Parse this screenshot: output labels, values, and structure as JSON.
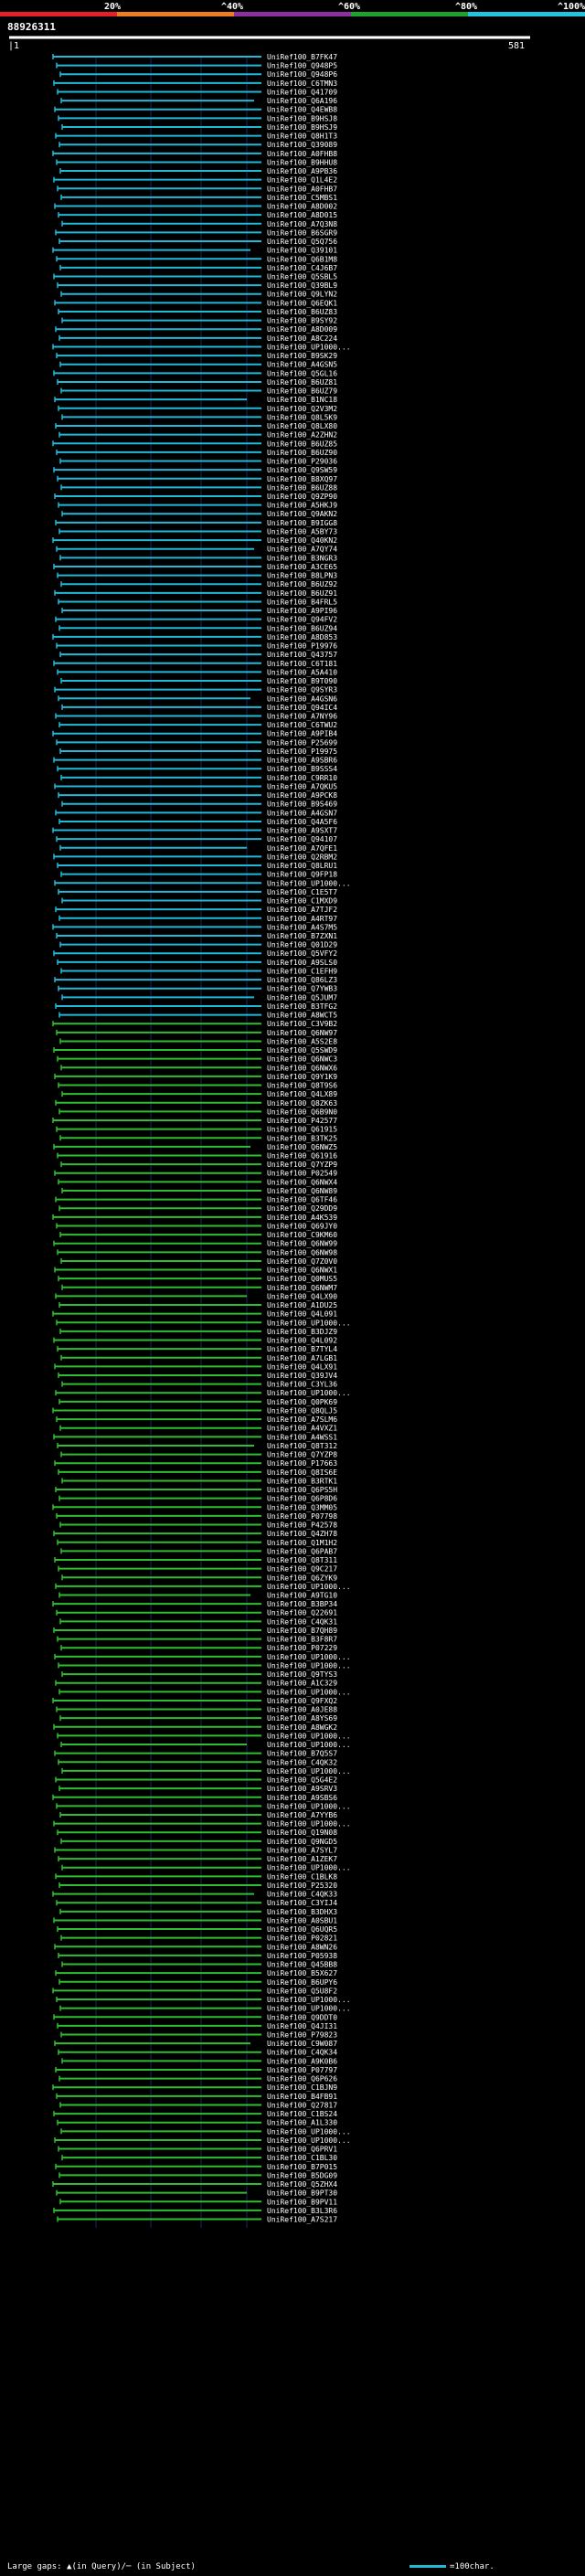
{
  "query": {
    "name": "88926311",
    "start_label": "1",
    "end_label": "581"
  },
  "scale_bar": {
    "labels": [
      "20%",
      "^40%",
      "^60%",
      "^80%",
      "^100%"
    ],
    "colors": [
      "#e4202a",
      "#ec7d22",
      "#8e2f9e",
      "#1fa12e",
      "#22c3dd"
    ]
  },
  "match_colors": {
    "cyan": "#22b8d8",
    "green": "#2fbe2f",
    "bg": "#000000"
  },
  "hits": [
    "UniRef100_B7FK47",
    "UniRef100_Q948P5",
    "UniRef100_Q948P6",
    "UniRef100_C6TMN3",
    "UniRef100_Q41709",
    "UniRef100_Q6A196",
    "UniRef100_Q4EWB8",
    "UniRef100_B9HSJ8",
    "UniRef100_B9HSJ9",
    "UniRef100_Q8H1T3",
    "UniRef100_Q39089",
    "UniRef100_A0FHB8",
    "UniRef100_B9HHU8",
    "UniRef100_A9PB36",
    "UniRef100_Q1L4E2",
    "UniRef100_A0FHB7",
    "UniRef100_C5MBS1",
    "UniRef100_A8D002",
    "UniRef100_A8D015",
    "UniRef100_A7Q3N8",
    "UniRef100_B6SGR9",
    "UniRef100_Q5Q756",
    "UniRef100_Q39101",
    "UniRef100_Q6B1M8",
    "UniRef100_C4J6B7",
    "UniRef100_Q5SBL5",
    "UniRef100_Q39BL9",
    "UniRef100_Q9LYN2",
    "UniRef100_Q6EQK1",
    "UniRef100_B6UZ83",
    "UniRef100_B9SY92",
    "UniRef100_A8D009",
    "UniRef100_A8C224",
    "UniRef100_UP1000...",
    "UniRef100_B9SK29",
    "UniRef100_A4GSN5",
    "UniRef100_Q5GL16",
    "UniRef100_B6UZ81",
    "UniRef100_B6UZ79",
    "UniRef100_B1NC18",
    "UniRef100_Q2V3M2",
    "UniRef100_Q8L5K9",
    "UniRef100_Q8LX80",
    "UniRef100_A2ZHN2",
    "UniRef100_B6UZ85",
    "UniRef100_B6UZ90",
    "UniRef100_P29036",
    "UniRef100_Q9SW59",
    "UniRef100_B8XQ97",
    "UniRef100_B6UZ88",
    "UniRef100_Q9ZP90",
    "UniRef100_A5HKJ9",
    "UniRef100_Q9AKN2",
    "UniRef100_B9IGG8",
    "UniRef100_A5BY73",
    "UniRef100_Q40KN2",
    "UniRef100_A7QY74",
    "UniRef100_B3NGR3",
    "UniRef100_A3CE65",
    "UniRef100_B8LPN3",
    "UniRef100_B6UZ92",
    "UniRef100_B6UZ91",
    "UniRef100_B4FRL5",
    "UniRef100_A9PI96",
    "UniRef100_Q94FV2",
    "UniRef100_B6UZ94",
    "UniRef100_A8D853",
    "UniRef100_P19976",
    "UniRef100_Q43757",
    "UniRef100_C6T181",
    "UniRef100_A5A410",
    "UniRef100_B9T090",
    "UniRef100_Q9SYR3",
    "UniRef100_A4GSN6",
    "UniRef100_Q94IC4",
    "UniRef100_A7NY96",
    "UniRef100_C6TWU2",
    "UniRef100_A9PIB4",
    "UniRef100_P25699",
    "UniRef100_P19975",
    "UniRef100_A9SBR6",
    "UniRef100_B9SSS4",
    "UniRef100_C9RR10",
    "UniRef100_A7QKU5",
    "UniRef100_A9PCK8",
    "UniRef100_B9S469",
    "UniRef100_A4GSN7",
    "UniRef100_Q4A5F6",
    "UniRef100_A9SXT7",
    "UniRef100_Q94107",
    "UniRef100_A7QFE1",
    "UniRef100_Q2RBM2",
    "UniRef100_Q8LRU1",
    "UniRef100_Q9FP18",
    "UniRef100_UP1000...",
    "UniRef100_C1E5T7",
    "UniRef100_C1MXD9",
    "UniRef100_A7TJF2",
    "UniRef100_A4RT97",
    "UniRef100_A4S7M5",
    "UniRef100_B7ZXN1",
    "UniRef100_Q01D29",
    "UniRef100_Q5VFY2",
    "UniRef100_A9SLS0",
    "UniRef100_C1EFH9",
    "UniRef100_Q86LZ3",
    "UniRef100_Q7YWB3",
    "UniRef100_Q5JUM7",
    "UniRef100_B3TFG2",
    "UniRef100_A8WCT5",
    "UniRef100_C3V9B2",
    "UniRef100_Q6NW97",
    "UniRef100_A5S2E8",
    "UniRef100_Q5SWD9",
    "UniRef100_Q6NWC3",
    "UniRef100_Q6NWX6",
    "UniRef100_Q9Y1K9",
    "UniRef100_Q8T9S6",
    "UniRef100_Q4LX89",
    "UniRef100_Q8ZK63",
    "UniRef100_Q6B9N0",
    "UniRef100_P42577",
    "UniRef100_Q61915",
    "UniRef100_B3TK25",
    "UniRef100_Q6NWZ5",
    "UniRef100_Q61916",
    "UniRef100_Q7YZP9",
    "UniRef100_P02549",
    "UniRef100_Q6NWX4",
    "UniRef100_Q6NW89",
    "UniRef100_Q6TF46",
    "UniRef100_Q29DD9",
    "UniRef100_A4K539",
    "UniRef100_Q69JY0",
    "UniRef100_C9KM60",
    "UniRef100_Q6NW99",
    "UniRef100_Q6NW98",
    "UniRef100_Q7Z0V0",
    "UniRef100_Q6NWX1",
    "UniRef100_Q0MUS5",
    "UniRef100_Q6NWM7",
    "UniRef100_Q4LX90",
    "UniRef100_A1DU25",
    "UniRef100_Q4L091",
    "UniRef100_UP1000...",
    "UniRef100_B3DJZ9",
    "UniRef100_Q4L092",
    "UniRef100_B7TYL4",
    "UniRef100_A7LGB1",
    "UniRef100_Q4LX91",
    "UniRef100_Q39JV4",
    "UniRef100_C3YL36",
    "UniRef100_UP1000...",
    "UniRef100_Q0PK69",
    "UniRef100_Q8QLJ5",
    "UniRef100_A7SLM6",
    "UniRef100_A4VXZ1",
    "UniRef100_A4WSS1",
    "UniRef100_Q8T312",
    "UniRef100_Q7YZP8",
    "UniRef100_P17663",
    "UniRef100_Q8IS6E",
    "UniRef100_B3RTK1",
    "UniRef100_Q6PS5H",
    "UniRef100_Q6P8D6",
    "UniRef100_Q3MM05",
    "UniRef100_P07798",
    "UniRef100_P42578",
    "UniRef100_Q4ZH78",
    "UniRef100_Q1M1H2",
    "UniRef100_Q6PAB7",
    "UniRef100_Q8T311",
    "UniRef100_Q9C217",
    "UniRef100_Q6ZYK9",
    "UniRef100_UP1000...",
    "UniRef100_A9TG10",
    "UniRef100_B3BP34",
    "UniRef100_Q22691",
    "UniRef100_C4QK31",
    "UniRef100_B7QH89",
    "UniRef100_B3F8R7",
    "UniRef100_P07229",
    "UniRef100_UP1000...",
    "UniRef100_UP1000...",
    "UniRef100_Q9TYS3",
    "UniRef100_A1C329",
    "UniRef100_UP1000...",
    "UniRef100_Q9FXQ2",
    "UniRef100_A0JE88",
    "UniRef100_A8YS69",
    "UniRef100_A8WGK2",
    "UniRef100_UP1000...",
    "UniRef100_UP1000...",
    "UniRef100_B7Q5S7",
    "UniRef100_C4QK32",
    "UniRef100_UP1000...",
    "UniRef100_Q5G4E2",
    "UniRef100_A9SRV3",
    "UniRef100_A9SBS6",
    "UniRef100_UP1000...",
    "UniRef100_A7YYB6",
    "UniRef100_UP1000...",
    "UniRef100_Q19N08",
    "UniRef100_Q9NGD5",
    "UniRef100_A7SYL7",
    "UniRef100_A1ZEK7",
    "UniRef100_UP1000...",
    "UniRef100_C1BLK8",
    "UniRef100_P25320",
    "UniRef100_C4QK33",
    "UniRef100_C3YIJ4",
    "UniRef100_B3DHX3",
    "UniRef100_A0SBU1",
    "UniRef100_Q6UQR5",
    "UniRef100_P02821",
    "UniRef100_A8WN26",
    "UniRef100_P05938",
    "UniRef100_Q45BB8",
    "UniRef100_B5X627",
    "UniRef100_B6UPY6",
    "UniRef100_Q5U8F2",
    "UniRef100_UP1000...",
    "UniRef100_UP1000...",
    "UniRef100_Q9DDT0",
    "UniRef100_Q4JI31",
    "UniRef100_P79823",
    "UniRef100_C9W087",
    "UniRef100_C4QK34",
    "UniRef100_A9K0B6",
    "UniRef100_P07797",
    "UniRef100_Q6P626",
    "UniRef100_C1BJN9",
    "UniRef100_B4FB91",
    "UniRef100_Q27817",
    "UniRef100_C1BS24",
    "UniRef100_A1L330",
    "UniRef100_UP1000...",
    "UniRef100_UP1000...",
    "UniRef100_Q6PRV1",
    "UniRef100_C1BL30",
    "UniRef100_B7P015",
    "UniRef100_B5DG09",
    "UniRef100_Q5ZHX4",
    "UniRef100_B9PT30",
    "UniRef100_B9PV11",
    "UniRef100_B3L3R6",
    "UniRef100_A7S217"
  ],
  "footer": {
    "legend": "Large gaps: ▲(in Query)/─ (in Subject)",
    "scale_key": "=100char."
  }
}
